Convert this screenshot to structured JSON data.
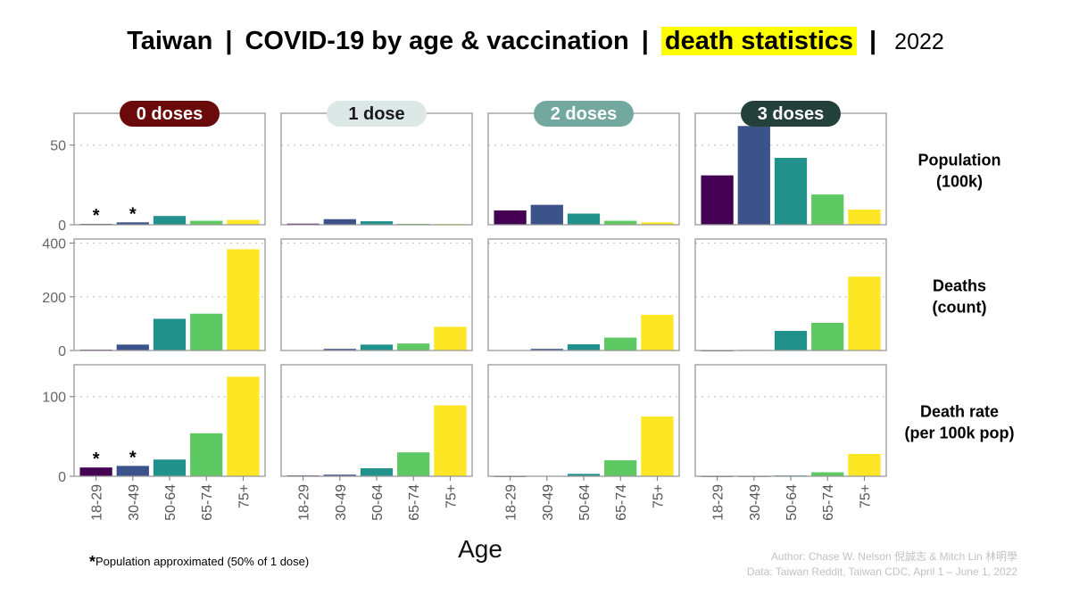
{
  "title": {
    "prefix": "Taiwan",
    "separator": "|",
    "main": "COVID-19 by age & vaccination",
    "highlight": "death statistics",
    "year": "2022"
  },
  "chart_data": {
    "type": "bar",
    "layout": "faceted grid (rows = metric, columns = vaccination status)",
    "categories": [
      "18-29",
      "30-49",
      "50-64",
      "65-74",
      "75+"
    ],
    "xlabel": "Age",
    "colors": [
      "#440154",
      "#3b528b",
      "#21918c",
      "#5ec962",
      "#fde725"
    ],
    "columns": [
      {
        "label": "0 doses",
        "strip_color": "#6b0a0a",
        "text_color": "#ffffff"
      },
      {
        "label": "1 dose",
        "strip_color": "#dce8e6",
        "text_color": "#1a1a1a"
      },
      {
        "label": "2 doses",
        "strip_color": "#73a89f",
        "text_color": "#ffffff"
      },
      {
        "label": "3 doses",
        "strip_color": "#24403b",
        "text_color": "#ffffff"
      }
    ],
    "rows": [
      {
        "label_lines": [
          "Population",
          "(100k)"
        ],
        "ylim": [
          0,
          70
        ],
        "yticks": [
          0,
          50
        ],
        "values": [
          [
            0.5,
            1.5,
            5.5,
            2.5,
            3
          ],
          [
            0.7,
            3.5,
            2.2,
            0.6,
            0.5
          ],
          [
            9,
            12.5,
            7,
            2.5,
            1.5
          ],
          [
            31,
            62,
            42,
            19,
            9.5
          ]
        ],
        "annotations": [
          {
            "column": 0,
            "categories": [
              0,
              1
            ],
            "text": "*"
          }
        ]
      },
      {
        "label_lines": [
          "Deaths",
          "(count)"
        ],
        "ylim": [
          0,
          415
        ],
        "yticks": [
          0,
          200,
          400
        ],
        "values": [
          [
            3,
            22,
            118,
            137,
            377
          ],
          [
            1,
            6,
            22,
            26,
            88
          ],
          [
            1,
            6,
            23,
            48,
            133
          ],
          [
            0,
            2,
            73,
            103,
            275
          ]
        ]
      },
      {
        "label_lines": [
          "Death rate",
          "(per 100k pop)"
        ],
        "ylim": [
          0,
          140
        ],
        "yticks": [
          0,
          100
        ],
        "values": [
          [
            11,
            13,
            21,
            54,
            125
          ],
          [
            1,
            2,
            10,
            30,
            89
          ],
          [
            0,
            0.5,
            3,
            20,
            75
          ],
          [
            0,
            0,
            1,
            5,
            28
          ]
        ],
        "annotations": [
          {
            "column": 0,
            "categories": [
              0,
              1
            ],
            "text": "*"
          }
        ]
      }
    ]
  },
  "footnote": {
    "marker": "*",
    "text": "Population approximated (50% of 1 dose)"
  },
  "credits": {
    "author": "Author: Chase W. Nelson 倪誠志 & Mitch Lin 林明學",
    "data": "Data: Taiwan Reddit, Taiwan CDC, April 1 – June 1, 2022"
  }
}
